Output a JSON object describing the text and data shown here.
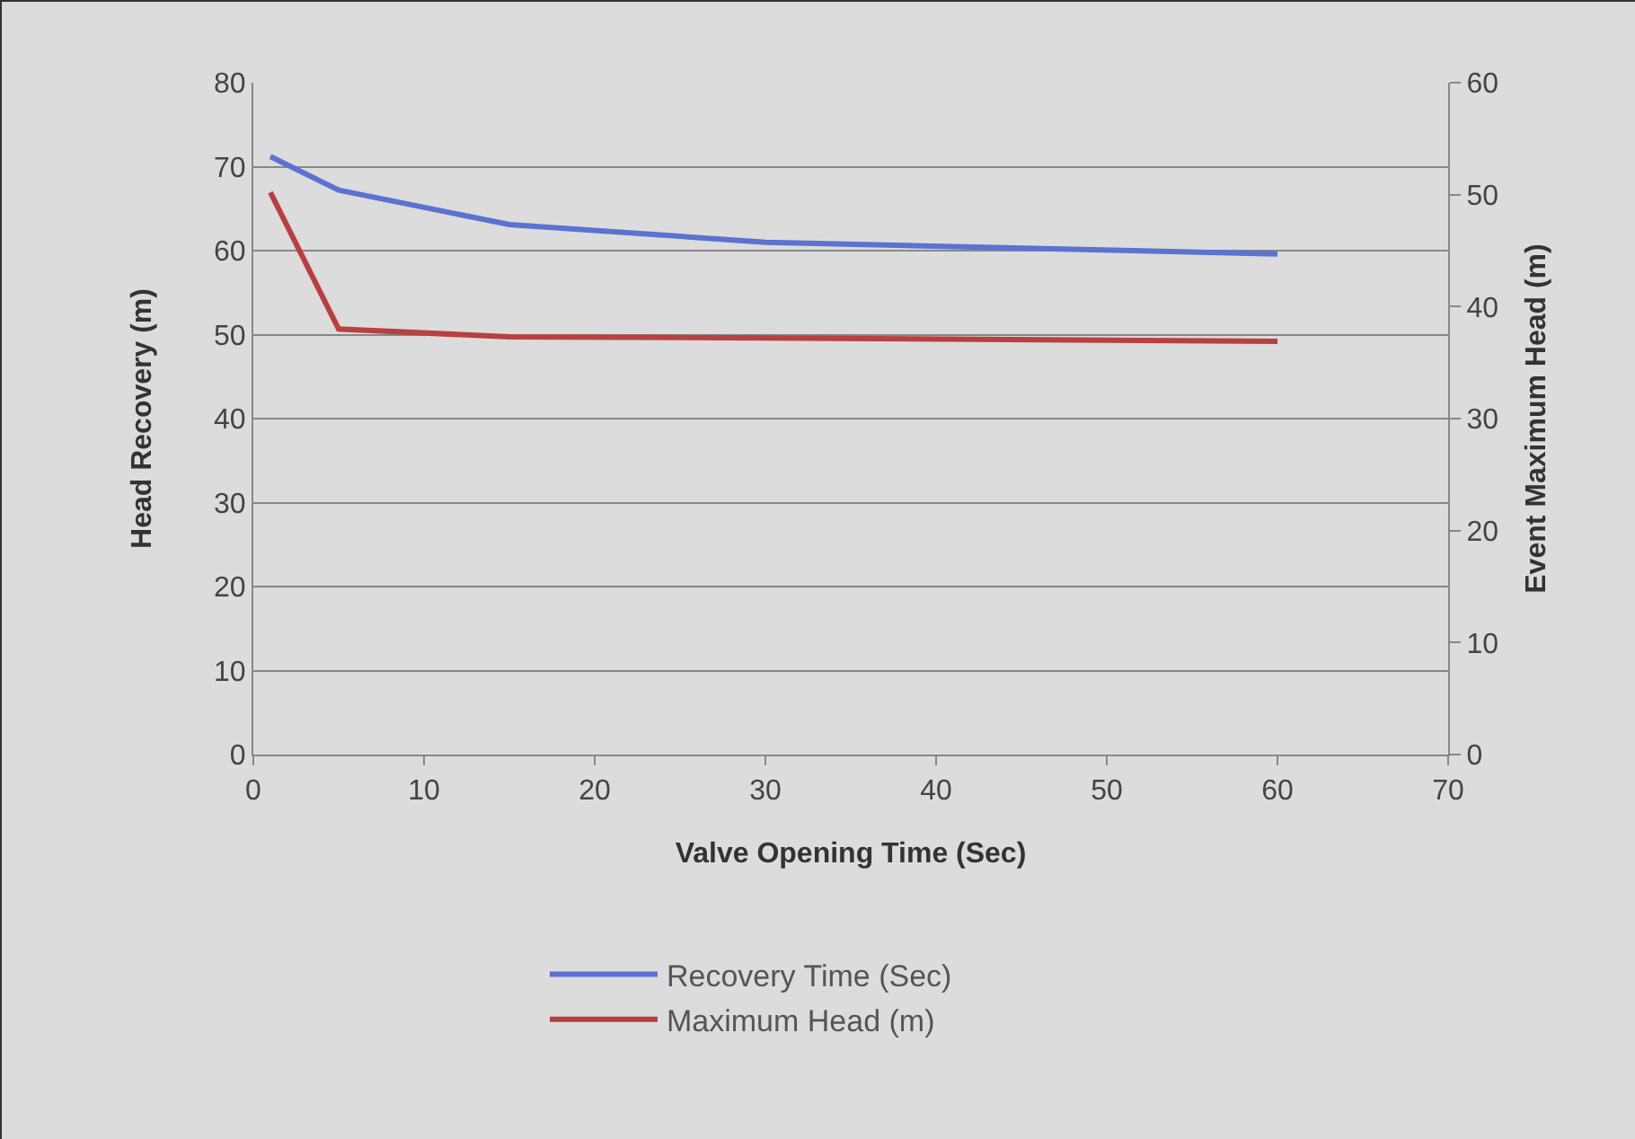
{
  "chart_data": {
    "type": "line",
    "xlabel": "Valve Opening Time (Sec)",
    "ylabel": "Head Recovery (m)",
    "y2label": "Event Maximum Head (m)",
    "x": [
      1,
      5,
      15,
      30,
      60
    ],
    "series": [
      {
        "name": "Recovery Time (Sec)",
        "color": "#5b72d0",
        "values": [
          71.2,
          67.2,
          63.1,
          61,
          59.6
        ]
      },
      {
        "name": "Maximum Head (m)",
        "color": "#b84040",
        "axis": "y2",
        "values": [
          50.2,
          38,
          37.3,
          37.2,
          36.9
        ]
      }
    ],
    "xlim": [
      0,
      70
    ],
    "xticks": [
      0,
      10,
      20,
      30,
      40,
      50,
      60,
      70
    ],
    "ylim": [
      0,
      80
    ],
    "yticks": [
      0,
      10,
      20,
      30,
      40,
      50,
      60,
      70,
      80
    ],
    "y2lim": [
      0,
      60
    ],
    "y2ticks": [
      0,
      10,
      20,
      30,
      40,
      50,
      60
    ],
    "grid": "y",
    "legend": "bottom",
    "marker": "none",
    "line_style": "solid"
  }
}
